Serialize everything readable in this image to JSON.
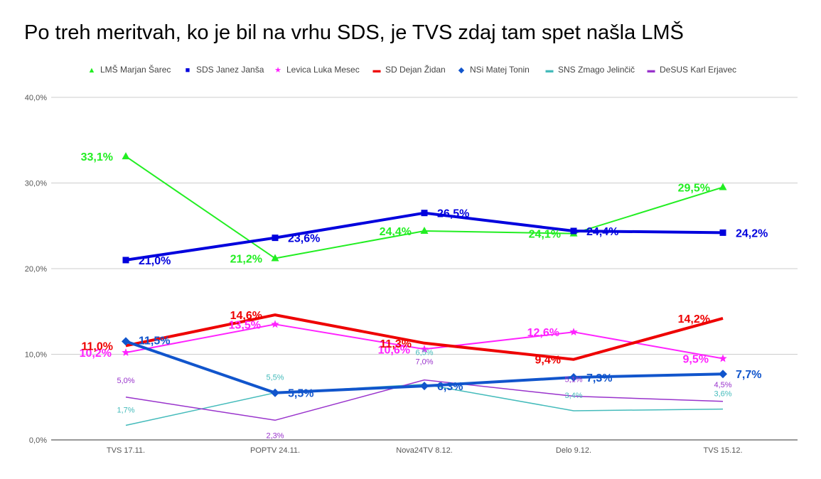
{
  "chart_data": {
    "type": "line",
    "title": "Po treh meritvah, ko je bil na vrhu SDS, je TVS zdaj tam spet našla LMŠ",
    "categories": [
      "TVS 17.11.",
      "POPTV 24.11.",
      "Nova24TV 8.12.",
      "Delo 9.12.",
      "TVS 15.12."
    ],
    "ylim": [
      0,
      40
    ],
    "yticks": [
      "0,0%",
      "10,0%",
      "20,0%",
      "30,0%",
      "40,0%"
    ],
    "grid": true,
    "legend_position": "top",
    "series": [
      {
        "name": "LMŠ Marjan Šarec",
        "values": [
          33.1,
          21.2,
          24.4,
          24.1,
          29.5
        ],
        "labels": [
          "33,1%",
          "21,2%",
          "24,4%",
          "24,1%",
          "29,5%"
        ],
        "color": "#22ee22",
        "marker": "triangle",
        "bold": true
      },
      {
        "name": "SDS Janez Janša",
        "values": [
          21.0,
          23.6,
          26.5,
          24.4,
          24.2
        ],
        "labels": [
          "21,0%",
          "23,6%",
          "26,5%",
          "24,4%",
          "24,2%"
        ],
        "color": "#0000dd",
        "marker": "square",
        "bold": true
      },
      {
        "name": "Levica Luka Mesec",
        "values": [
          10.2,
          13.5,
          10.6,
          12.6,
          9.5
        ],
        "labels": [
          "10,2%",
          "13,5%",
          "10,6%",
          "12,6%",
          "9,5%"
        ],
        "color": "#ff22ff",
        "marker": "star",
        "bold": true
      },
      {
        "name": "SD Dejan Židan",
        "values": [
          11.0,
          14.6,
          11.3,
          9.4,
          14.2
        ],
        "labels": [
          "11,0%",
          "14,6%",
          "11,3%",
          "9,4%",
          "14,2%"
        ],
        "color": "#ee0000",
        "marker": "none",
        "bold": true
      },
      {
        "name": "NSi Matej Tonin",
        "values": [
          11.5,
          5.5,
          6.3,
          7.3,
          7.7
        ],
        "labels": [
          "11,5%",
          "5,5%",
          "6,3%",
          "7,3%",
          "7,7%"
        ],
        "color": "#1155cc",
        "marker": "diamond",
        "bold": true
      },
      {
        "name": "SNS Zmago Jelinčič",
        "values": [
          1.7,
          5.5,
          6.5,
          3.4,
          3.6
        ],
        "labels": [
          "1,7%",
          "5,5%",
          "6,5%",
          "3,4%",
          "3,6%"
        ],
        "color": "#44bbbb",
        "marker": "none",
        "bold": false
      },
      {
        "name": "DeSUS Karl Erjavec",
        "values": [
          5.0,
          2.3,
          7.0,
          5.1,
          4.5
        ],
        "labels": [
          "5,0%",
          "2,3%",
          "7,0%",
          "5,1%",
          "4,5%"
        ],
        "color": "#9933cc",
        "marker": "none",
        "bold": false
      }
    ]
  }
}
